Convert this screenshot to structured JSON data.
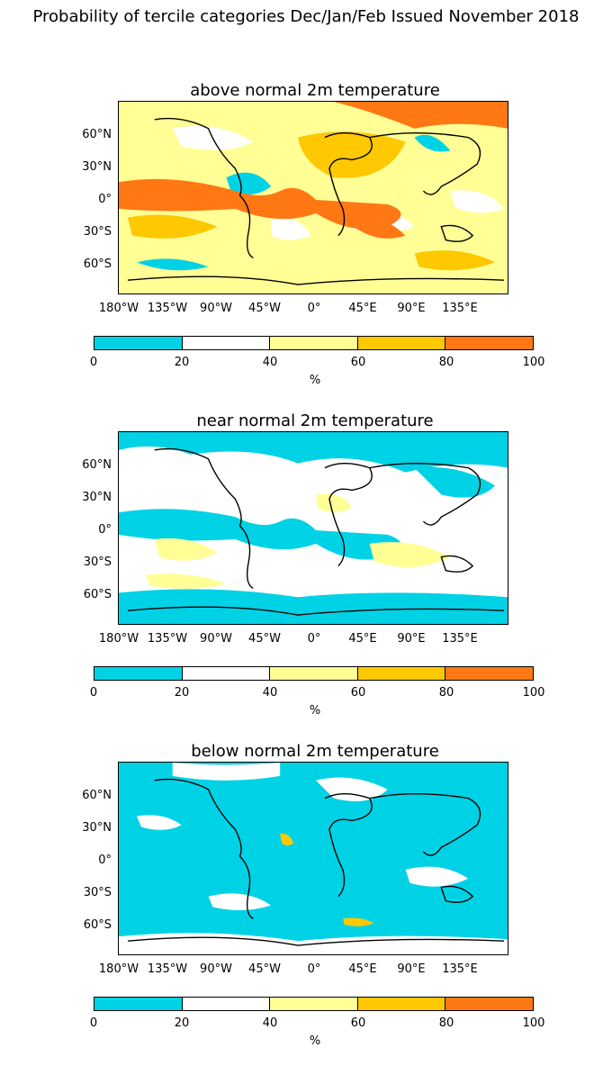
{
  "title": "Probability of tercile categories Dec/Jan/Feb Issued November 2018",
  "lat_labels": [
    "60°N",
    "30°N",
    "0°",
    "30°S",
    "60°S"
  ],
  "lon_labels": [
    "180°W",
    "135°W",
    "90°W",
    "45°W",
    "0°",
    "45°E",
    "90°E",
    "135°E"
  ],
  "colorbar": {
    "colors": [
      "#00d2e6",
      "#ffffff",
      "#ffff96",
      "#ffc800",
      "#ff7814"
    ],
    "ticks": [
      "0",
      "20",
      "40",
      "60",
      "80",
      "100"
    ],
    "unit": "%"
  },
  "panels": [
    {
      "title": "above normal 2m temperature",
      "background_category": "40-60"
    },
    {
      "title": "near normal 2m temperature",
      "background_category": "20-40"
    },
    {
      "title": "below normal 2m temperature",
      "background_category": "0-20"
    }
  ]
}
